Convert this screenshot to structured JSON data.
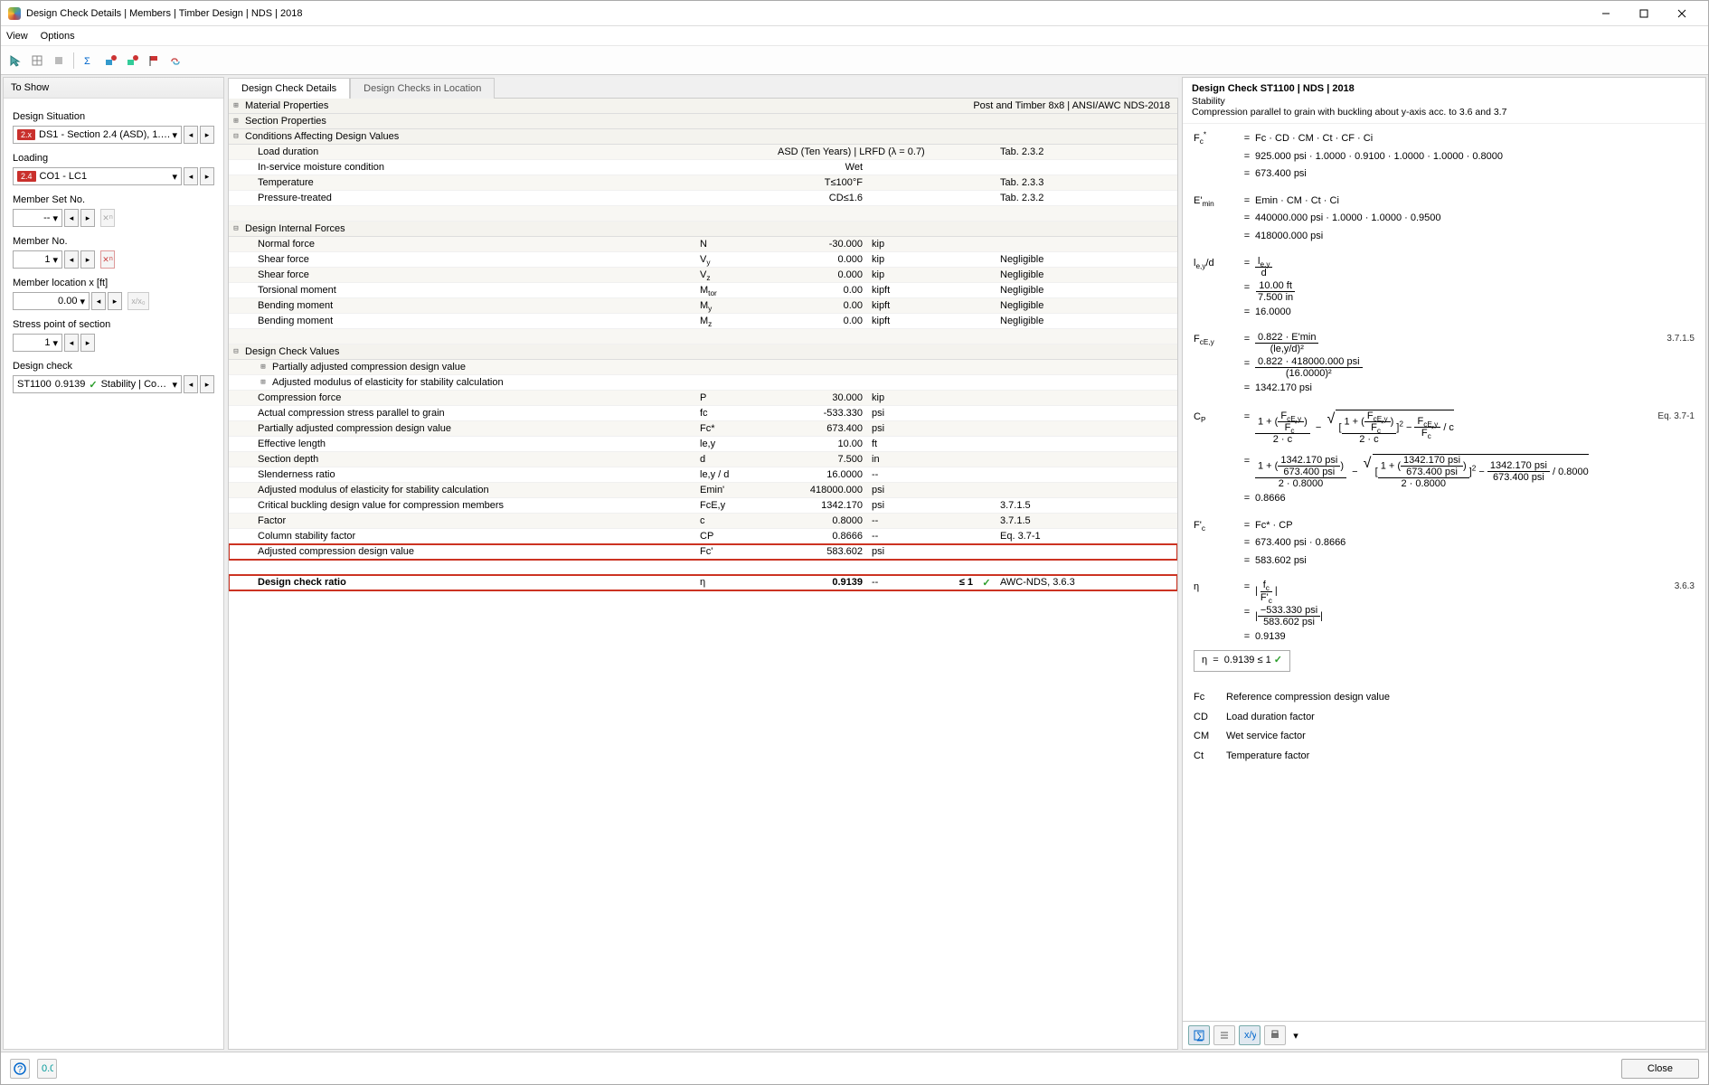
{
  "title": "Design Check Details | Members | Timber Design | NDS | 2018",
  "menu": {
    "view": "View",
    "options": "Options"
  },
  "side": {
    "header": "To Show",
    "design_situation_label": "Design Situation",
    "design_situation_tag": "2.x",
    "design_situation_value": "DS1 - Section 2.4 (ASD), 1. to 7.",
    "loading_label": "Loading",
    "loading_tag": "2.4",
    "loading_value": "CO1 - LC1",
    "member_set_label": "Member Set No.",
    "member_set_value": "--",
    "member_no_label": "Member No.",
    "member_no_value": "1",
    "member_loc_label": "Member location x [ft]",
    "member_loc_value": "0.00",
    "member_loc_xx": "x/x₀",
    "stress_point_label": "Stress point of section",
    "stress_point_value": "1",
    "design_check_label": "Design check",
    "design_check_code": "ST1100",
    "design_check_ratio": "0.9139",
    "design_check_desc": "Stability | Compre..."
  },
  "tabs": {
    "t1": "Design Check Details",
    "t2": "Design Checks in Location"
  },
  "section_info": "Post and Timber 8x8 | ANSI/AWC NDS-2018",
  "tree": {
    "mat": "Material Properties",
    "sec": "Section Properties",
    "cond": "Conditions Affecting Design Values",
    "dif": "Design Internal Forces",
    "dcv": "Design Check Values",
    "pacd": "Partially adjusted compression design value",
    "ame": "Adjusted modulus of elasticity for stability calculation"
  },
  "cond_rows": [
    {
      "l": "Load duration",
      "s": "",
      "v": "ASD (Ten Years) | LRFD (λ = 0.7)",
      "u": "",
      "r": "Tab. 2.3.2"
    },
    {
      "l": "In-service moisture condition",
      "s": "",
      "v": "Wet",
      "u": "",
      "r": ""
    },
    {
      "l": "Temperature",
      "s": "",
      "v": "T≤100°F",
      "u": "",
      "r": "Tab. 2.3.3"
    },
    {
      "l": "Pressure-treated",
      "s": "",
      "v": "CD≤1.6",
      "u": "",
      "r": "Tab. 2.3.2"
    }
  ],
  "dif_rows": [
    {
      "l": "Normal force",
      "s": "N",
      "v": "-30.000",
      "u": "kip",
      "r": ""
    },
    {
      "l": "Shear force",
      "s": "V",
      "sub": "y",
      "v": "0.000",
      "u": "kip",
      "r": "Negligible"
    },
    {
      "l": "Shear force",
      "s": "V",
      "sub": "z",
      "v": "0.000",
      "u": "kip",
      "r": "Negligible"
    },
    {
      "l": "Torsional moment",
      "s": "M",
      "sub": "tor",
      "v": "0.00",
      "u": "kipft",
      "r": "Negligible"
    },
    {
      "l": "Bending moment",
      "s": "M",
      "sub": "y",
      "v": "0.00",
      "u": "kipft",
      "r": "Negligible"
    },
    {
      "l": "Bending moment",
      "s": "M",
      "sub": "z",
      "v": "0.00",
      "u": "kipft",
      "r": "Negligible"
    }
  ],
  "dcv_rows": [
    {
      "l": "Compression force",
      "s": "P",
      "v": "30.000",
      "u": "kip",
      "r": ""
    },
    {
      "l": "Actual compression stress parallel to grain",
      "s": "fc",
      "v": "-533.330",
      "u": "psi",
      "r": ""
    },
    {
      "l": "Partially adjusted compression design value",
      "s": "Fc*",
      "v": "673.400",
      "u": "psi",
      "r": ""
    },
    {
      "l": "Effective length",
      "s": "le,y",
      "v": "10.00",
      "u": "ft",
      "r": ""
    },
    {
      "l": "Section depth",
      "s": "d",
      "v": "7.500",
      "u": "in",
      "r": ""
    },
    {
      "l": "Slenderness ratio",
      "s": "le,y / d",
      "v": "16.0000",
      "u": "--",
      "r": ""
    },
    {
      "l": "Adjusted modulus of elasticity for stability calculation",
      "s": "Emin'",
      "v": "418000.000",
      "u": "psi",
      "r": ""
    },
    {
      "l": "Critical buckling design value for compression members",
      "s": "FcE,y",
      "v": "1342.170",
      "u": "psi",
      "r": "3.7.1.5"
    },
    {
      "l": "Factor",
      "s": "c",
      "v": "0.8000",
      "u": "--",
      "r": "3.7.1.5"
    },
    {
      "l": "Column stability factor",
      "s": "CP",
      "v": "0.8666",
      "u": "--",
      "r": "Eq. 3.7-1"
    }
  ],
  "hi1": {
    "l": "Adjusted compression design value",
    "s": "Fc'",
    "v": "583.602",
    "u": "psi"
  },
  "hi2": {
    "l": "Design check ratio",
    "s": "η",
    "v": "0.9139",
    "u": "--",
    "cond": "≤ 1",
    "r": "AWC-NDS, 3.6.3"
  },
  "right": {
    "title": "Design Check ST1100 | NDS | 2018",
    "sub1": "Stability",
    "sub2": "Compression parallel to grain with buckling about y-axis acc. to 3.6 and 3.7",
    "fc_expr": "Fc  ·  CD  ·  CM  ·  Ct  ·  CF  ·  Ci",
    "fc_num": "925.000 psi  ·  1.0000  ·  0.9100  ·  1.0000  ·  1.0000  ·  0.8000",
    "fc_res": "673.400 psi",
    "emin_expr": "Emin  ·  CM  ·  Ct  ·  Ci",
    "emin_num": "440000.000 psi  ·  1.0000  ·  1.0000  ·  0.9500",
    "emin_res": "418000.000 psi",
    "leyd_n": "10.00 ft",
    "leyd_d": "7.500 in",
    "leyd_res": "16.0000",
    "fcey_top": "0.822  ·  E'min",
    "fcey_bot": "(le,y/d)²",
    "fcey_num_top": "0.822  ·  418000.000 psi",
    "fcey_num_bot": "(16.0000)²",
    "fcey_res": "1342.170 psi",
    "cp_num1": "1342.170 psi",
    "cp_num2": "673.400 psi",
    "cp_c": "0.8000",
    "cp_res": "0.8666",
    "fcp_expr": "Fc*  ·  CP",
    "fcp_num": "673.400 psi  ·  0.8666",
    "fcp_res": "583.602 psi",
    "eta_n": "−533.330 psi",
    "eta_d": "583.602 psi",
    "eta_res": "0.9139",
    "eta_box": "0.9139  ≤ 1",
    "ref_3715": "3.7.1.5",
    "ref_371": "Eq. 3.7-1",
    "ref_363": "3.6.3",
    "legend": [
      {
        "s": "Fc",
        "t": "Reference compression design value"
      },
      {
        "s": "CD",
        "t": "Load duration factor"
      },
      {
        "s": "CM",
        "t": "Wet service factor"
      },
      {
        "s": "Ct",
        "t": "Temperature factor"
      }
    ]
  },
  "footer": {
    "close": "Close"
  }
}
